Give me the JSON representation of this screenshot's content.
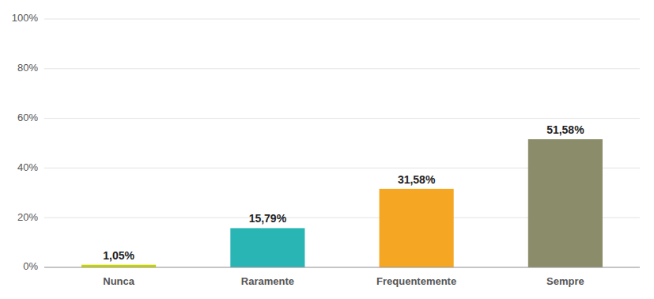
{
  "chart_data": {
    "type": "bar",
    "categories": [
      "Nunca",
      "Raramente",
      "Frequentemente",
      "Sempre"
    ],
    "values": [
      1.05,
      15.79,
      31.58,
      51.58
    ],
    "value_labels": [
      "1,05%",
      "15,79%",
      "31,58%",
      "51,58%"
    ],
    "colors": [
      "#c8d400",
      "#2ab5b5",
      "#f5a623",
      "#8b8c6a"
    ],
    "ylim": [
      0,
      100
    ],
    "yticks": [
      {
        "value": 0,
        "label": "0%"
      },
      {
        "value": 20,
        "label": "20%"
      },
      {
        "value": 40,
        "label": "40%"
      },
      {
        "value": 60,
        "label": "60%"
      },
      {
        "value": 80,
        "label": "80%"
      },
      {
        "value": 100,
        "label": "100%"
      }
    ],
    "grid": true,
    "data_labels": true
  }
}
